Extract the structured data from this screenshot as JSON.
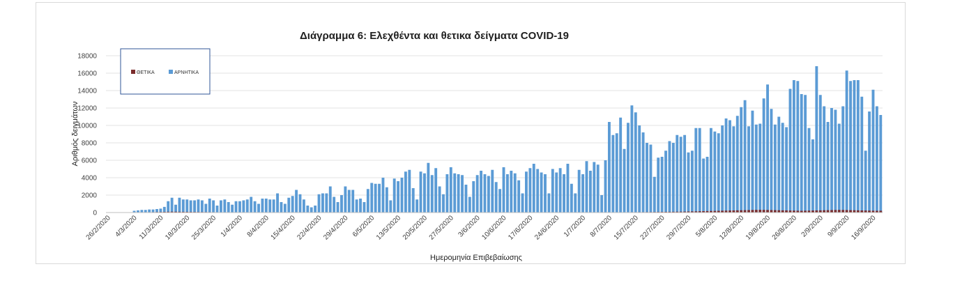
{
  "chart_data": {
    "type": "bar",
    "title": "Διάγραμμα 6: Ελεχθέντα και θετικα δείγματα COVID-19",
    "xlabel": "Ημερομηνία Επιβεβαίωσης",
    "ylabel": "Αριθμός δειγμάτων",
    "ylim": [
      0,
      18000
    ],
    "yticks": [
      0,
      2000,
      4000,
      6000,
      8000,
      10000,
      12000,
      14000,
      16000,
      18000
    ],
    "ytick_labels": [
      "0",
      "2000",
      "4000",
      "6000",
      "8000",
      "10000",
      "12000",
      "14000",
      "16000",
      "18000"
    ],
    "grid": true,
    "legend_position": "top-left",
    "x_tick_labels": [
      "26/2/2020",
      "4/3/2020",
      "11/3/2020",
      "18/3/2020",
      "25/3/2020",
      "1/4/2020",
      "8/4/2020",
      "15/4/2020",
      "22/4/2020",
      "29/4/2020",
      "6/5/2020",
      "13/5/2020",
      "20/5/2020",
      "27/5/2020",
      "3/6/2020",
      "10/6/2020",
      "17/6/2020",
      "24/6/2020",
      "1/7/2020",
      "8/7/2020",
      "15/7/2020",
      "22/7/2020",
      "29/7/2020",
      "5/8/2020",
      "12/8/2020",
      "19/8/2020",
      "26/8/2020",
      "2/9/2020",
      "9/9/2020",
      "16/9/2020"
    ],
    "series": [
      {
        "name": "ΘΕΤΙΚΑ",
        "color": "#7b2c2c",
        "values": [
          0,
          0,
          0,
          0,
          0,
          0,
          0,
          10,
          15,
          20,
          30,
          40,
          50,
          60,
          70,
          80,
          90,
          100,
          95,
          90,
          85,
          80,
          75,
          70,
          65,
          60,
          55,
          50,
          45,
          40,
          40,
          38,
          36,
          34,
          32,
          30,
          28,
          26,
          24,
          22,
          20,
          20,
          18,
          16,
          15,
          14,
          13,
          12,
          12,
          11,
          10,
          10,
          10,
          10,
          10,
          10,
          10,
          10,
          10,
          10,
          10,
          10,
          10,
          10,
          10,
          10,
          10,
          10,
          10,
          10,
          10,
          10,
          10,
          10,
          10,
          10,
          10,
          10,
          10,
          10,
          10,
          10,
          10,
          10,
          10,
          10,
          10,
          10,
          10,
          10,
          10,
          10,
          10,
          10,
          10,
          10,
          10,
          10,
          10,
          10,
          10,
          10,
          10,
          10,
          10,
          10,
          10,
          10,
          10,
          10,
          10,
          10,
          10,
          10,
          10,
          10,
          10,
          10,
          10,
          10,
          10,
          12,
          12,
          14,
          14,
          15,
          16,
          18,
          20,
          20,
          22,
          24,
          25,
          28,
          30,
          32,
          35,
          38,
          40,
          42,
          45,
          48,
          50,
          55,
          60,
          65,
          70,
          75,
          80,
          85,
          90,
          95,
          100,
          110,
          120,
          130,
          140,
          150,
          160,
          170,
          180,
          190,
          200,
          210,
          220,
          230,
          240,
          250,
          260,
          270,
          280,
          290,
          300,
          310,
          300,
          290,
          280,
          270,
          260,
          250,
          240,
          230,
          220,
          210,
          200,
          210,
          220,
          230,
          240,
          250,
          260,
          270,
          280,
          290,
          300,
          290,
          280,
          270,
          260,
          250,
          240,
          230,
          220,
          210,
          200,
          210
        ]
      },
      {
        "name": "ΑΡΝΗΤΙΚΑ",
        "color": "#5b9bd5",
        "values": [
          0,
          0,
          0,
          0,
          0,
          0,
          0,
          200,
          250,
          300,
          300,
          350,
          350,
          400,
          450,
          650,
          1300,
          1700,
          900,
          1700,
          1500,
          1500,
          1400,
          1400,
          1500,
          1400,
          1000,
          1600,
          1400,
          800,
          1400,
          1500,
          1200,
          900,
          1300,
          1300,
          1400,
          1500,
          1800,
          1300,
          1000,
          1600,
          1600,
          1500,
          1500,
          2200,
          1200,
          1000,
          1700,
          1900,
          2600,
          2100,
          1500,
          800,
          600,
          800,
          2100,
          2200,
          2200,
          3000,
          1800,
          1200,
          2000,
          3000,
          2600,
          2600,
          1500,
          1600,
          1200,
          2700,
          3400,
          3300,
          3300,
          4000,
          2900,
          1400,
          3900,
          3600,
          4000,
          4700,
          4900,
          2800,
          1500,
          4700,
          4500,
          5700,
          4300,
          5100,
          3000,
          2100,
          4400,
          5200,
          4500,
          4400,
          4300,
          3200,
          1800,
          3600,
          4300,
          4800,
          4400,
          4200,
          4900,
          3500,
          2700,
          5200,
          4400,
          4800,
          4500,
          3700,
          2200,
          4700,
          5100,
          5600,
          5000,
          4600,
          4400,
          2200,
          5000,
          4600,
          5100,
          4400,
          5600,
          3300,
          2200,
          4900,
          4400,
          5900,
          4800,
          5800,
          5500,
          2000,
          6000,
          10400,
          8900,
          9100,
          10900,
          7300,
          10300,
          12300,
          11500,
          10000,
          9200,
          8000,
          7800,
          4100,
          6300,
          6400,
          7100,
          8200,
          8000,
          8900,
          8700,
          8900,
          6900,
          7100,
          9700,
          9700,
          6200,
          6400,
          9700,
          9300,
          9100,
          10000,
          10800,
          10600,
          9900,
          11100,
          12100,
          12900,
          9900,
          11700,
          10100,
          10200,
          13100,
          14700,
          11900,
          10100,
          11000,
          10300,
          9800,
          14200,
          15200,
          15100,
          13600,
          13500,
          9700,
          8400,
          16800,
          13500,
          12200,
          10400,
          12000,
          11800,
          10200,
          12200,
          16300,
          15100,
          15200,
          15200,
          13300,
          7100,
          11600,
          14100,
          12200,
          11200
        ]
      }
    ]
  }
}
